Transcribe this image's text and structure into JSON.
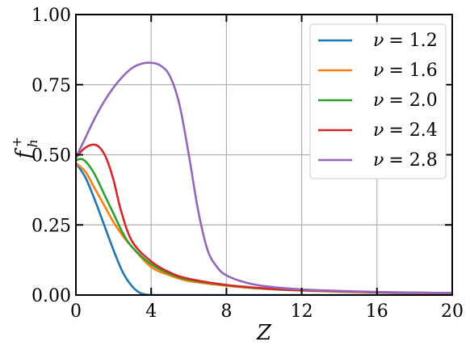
{
  "chart_data": {
    "type": "line",
    "xlabel": "Z",
    "ylabel": "f",
    "ylabel_sup": "+",
    "ylabel_sub": "h",
    "xlim": [
      0,
      20
    ],
    "ylim": [
      0,
      1.0
    ],
    "xticks": [
      0,
      4,
      8,
      12,
      16,
      20
    ],
    "xtick_labels": [
      "0",
      "4",
      "8",
      "12",
      "16",
      "20"
    ],
    "yticks": [
      0,
      0.25,
      0.5,
      0.75,
      1.0
    ],
    "ytick_labels": [
      "0.00",
      "0.25",
      "0.50",
      "0.75",
      "1.00"
    ],
    "grid": true,
    "legend_position": "top-right",
    "series": [
      {
        "name": "ν = 1.2",
        "nu_symbol": "ν",
        "nu_value": "= 1.2",
        "color": "#1f77b4",
        "x": [
          0,
          0.5,
          1.0,
          1.5,
          2.0,
          2.5,
          3.0,
          3.4,
          3.8,
          4.2,
          5,
          8,
          12,
          16,
          20
        ],
        "y": [
          0.47,
          0.42,
          0.34,
          0.25,
          0.16,
          0.08,
          0.03,
          0.008,
          0.001,
          0,
          0,
          0,
          0,
          0,
          0
        ]
      },
      {
        "name": "ν = 1.6",
        "nu_symbol": "ν",
        "nu_value": "= 1.6",
        "color": "#ff7f0e",
        "x": [
          0,
          0.5,
          1.0,
          1.5,
          2.0,
          2.5,
          3.0,
          4.0,
          5.0,
          6.0,
          8.0,
          10.0,
          12.0,
          16.0,
          20.0
        ],
        "y": [
          0.47,
          0.44,
          0.38,
          0.32,
          0.26,
          0.21,
          0.17,
          0.1,
          0.07,
          0.05,
          0.033,
          0.022,
          0.016,
          0.009,
          0.006
        ]
      },
      {
        "name": "ν = 2.0",
        "nu_symbol": "ν",
        "nu_value": "= 2.0",
        "color": "#2ca02c",
        "x": [
          0,
          0.3,
          0.6,
          1.0,
          1.5,
          2.0,
          2.5,
          3.0,
          4.0,
          5.0,
          6.0,
          8.0,
          10.0,
          12.0,
          16.0,
          20.0
        ],
        "y": [
          0.48,
          0.485,
          0.47,
          0.43,
          0.36,
          0.29,
          0.22,
          0.17,
          0.11,
          0.075,
          0.055,
          0.035,
          0.023,
          0.017,
          0.01,
          0.007
        ]
      },
      {
        "name": "ν = 2.4",
        "nu_symbol": "ν",
        "nu_value": "= 2.4",
        "color": "#d62728",
        "x": [
          0,
          0.4,
          0.8,
          1.2,
          1.6,
          2.0,
          2.4,
          3.0,
          4.0,
          5.0,
          6.0,
          8.0,
          10.0,
          12.0,
          16.0,
          20.0
        ],
        "y": [
          0.49,
          0.52,
          0.535,
          0.53,
          0.49,
          0.41,
          0.3,
          0.19,
          0.12,
          0.08,
          0.058,
          0.036,
          0.024,
          0.017,
          0.01,
          0.007
        ]
      },
      {
        "name": "ν = 2.8",
        "nu_symbol": "ν",
        "nu_value": "= 2.8",
        "color": "#9467bd",
        "x": [
          0,
          0.5,
          1.0,
          1.5,
          2.0,
          2.5,
          3.0,
          3.5,
          4.0,
          4.5,
          5.0,
          5.5,
          6.0,
          6.5,
          7.0,
          7.5,
          8.0,
          9.0,
          10.0,
          12.0,
          16.0,
          20.0
        ],
        "y": [
          0.49,
          0.56,
          0.63,
          0.69,
          0.74,
          0.78,
          0.81,
          0.825,
          0.828,
          0.818,
          0.78,
          0.68,
          0.5,
          0.3,
          0.16,
          0.1,
          0.07,
          0.045,
          0.032,
          0.02,
          0.011,
          0.007
        ]
      }
    ]
  }
}
